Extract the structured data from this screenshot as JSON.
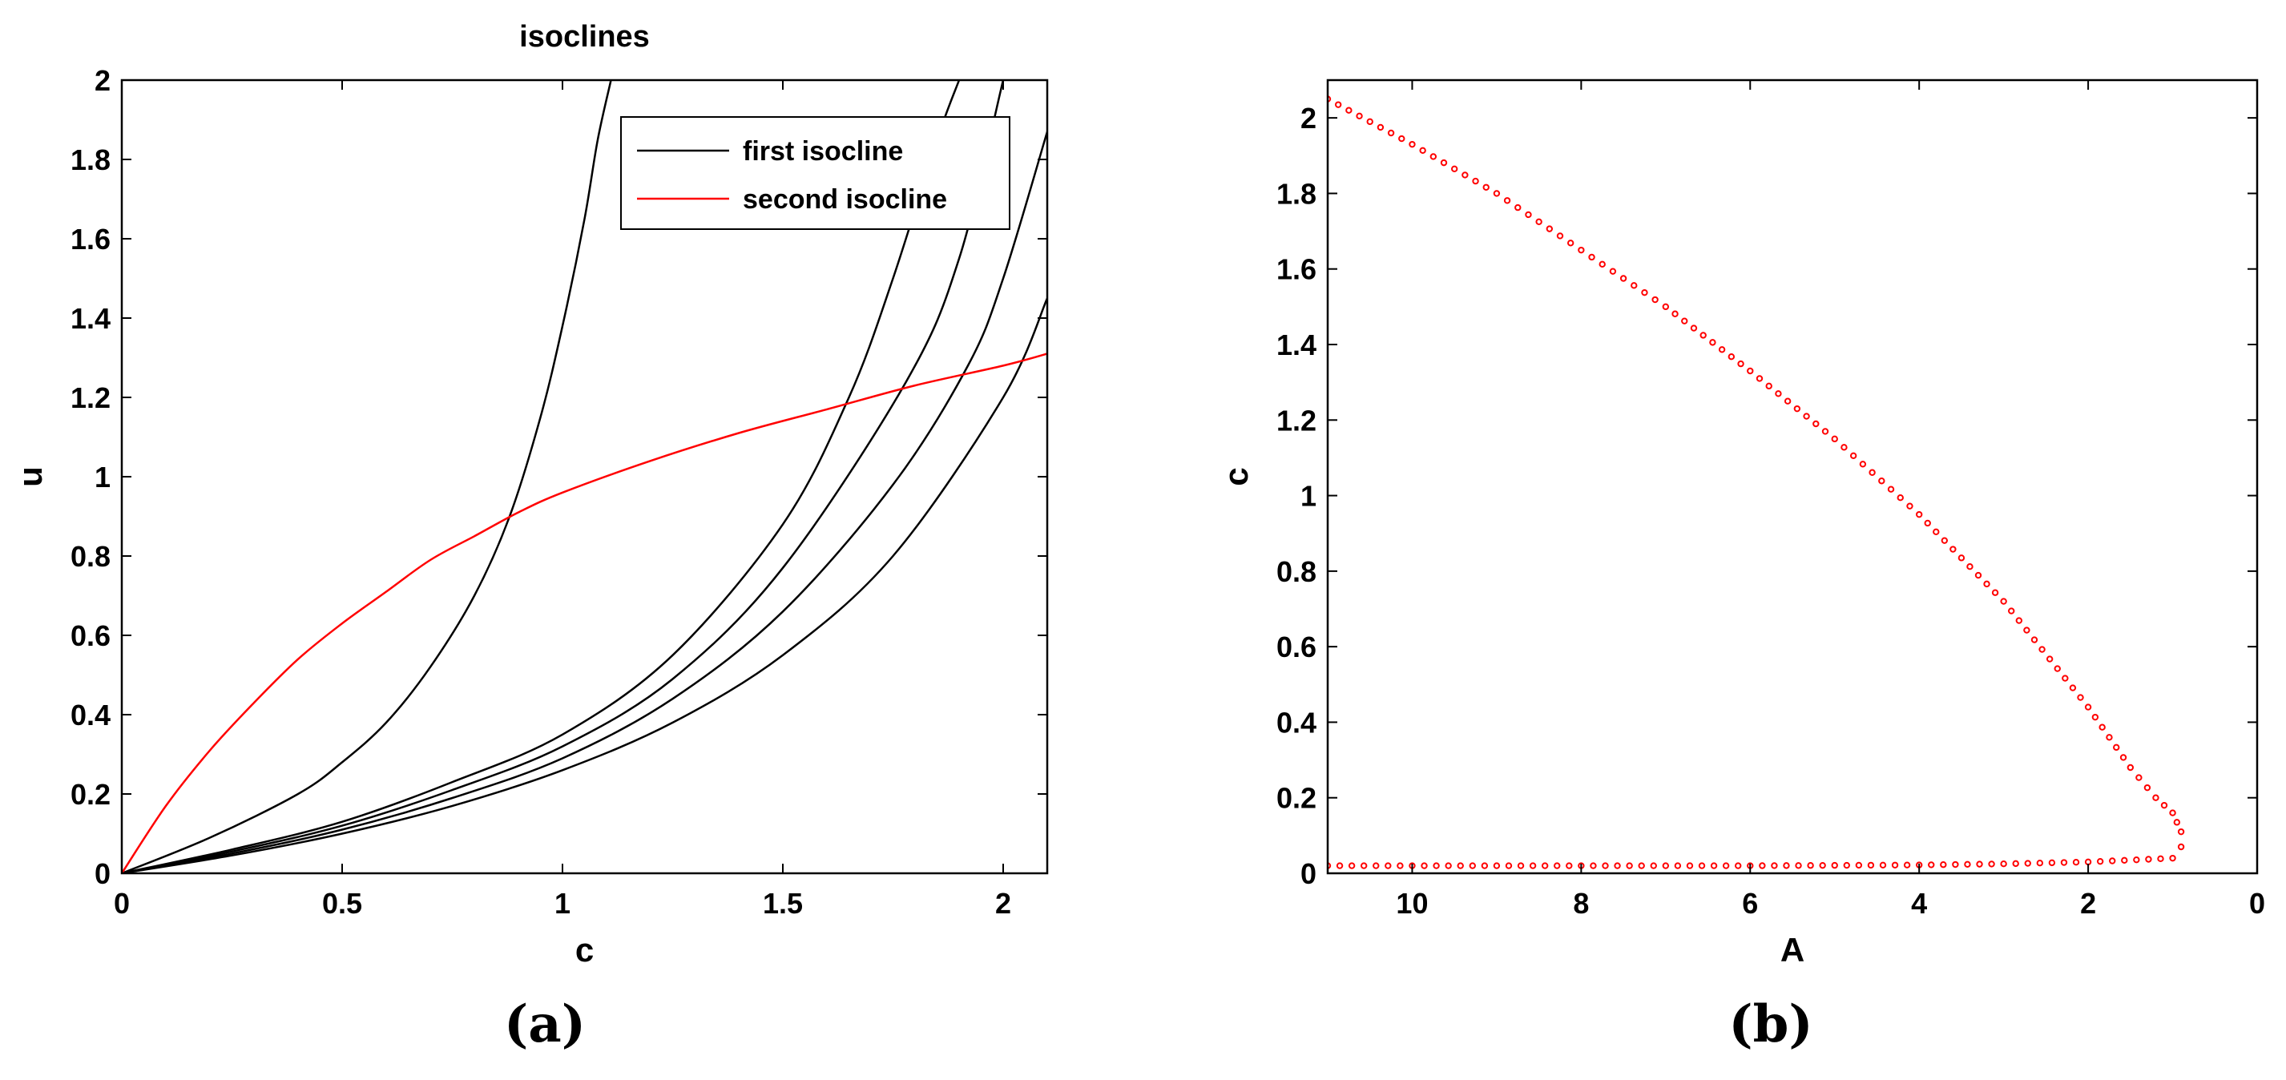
{
  "chart_data": [
    {
      "type": "line",
      "panel_label": "(a)",
      "title": "isoclines",
      "xlabel": "c",
      "ylabel": "u",
      "xlim": [
        0,
        2.1
      ],
      "ylim": [
        0,
        2
      ],
      "xticks": [
        0,
        0.5,
        1,
        1.5,
        2
      ],
      "xtick_labels": [
        "0",
        "0.5",
        "1",
        "1.5",
        "2"
      ],
      "yticks": [
        0,
        0.2,
        0.4,
        0.6,
        0.8,
        1,
        1.2,
        1.4,
        1.6,
        1.8,
        2
      ],
      "ytick_labels": [
        "0",
        "0.2",
        "0.4",
        "0.6",
        "0.8",
        "1",
        "1.2",
        "1.4",
        "1.6",
        "1.8",
        "2"
      ],
      "grid": false,
      "legend": {
        "placement": "top-right",
        "entries": [
          "first isocline",
          "second isocline"
        ]
      },
      "series": [
        {
          "name": "first isocline",
          "color": "#000000",
          "x": [
            0,
            0.2,
            0.4,
            0.5,
            0.6,
            0.7,
            0.8,
            0.88,
            0.95,
            1.0,
            1.05,
            1.08,
            1.11
          ],
          "y": [
            0,
            0.09,
            0.2,
            0.28,
            0.38,
            0.52,
            0.7,
            0.9,
            1.15,
            1.38,
            1.65,
            1.85,
            2.0
          ]
        },
        {
          "name": "",
          "color": "#000000",
          "x": [
            0,
            0.25,
            0.5,
            0.75,
            1.0,
            1.25,
            1.5,
            1.65,
            1.75,
            1.85,
            1.9
          ],
          "y": [
            0,
            0.06,
            0.13,
            0.23,
            0.35,
            0.55,
            0.88,
            1.2,
            1.5,
            1.85,
            2.0
          ]
        },
        {
          "name": "",
          "color": "#000000",
          "x": [
            0,
            0.25,
            0.5,
            0.75,
            1.0,
            1.25,
            1.5,
            1.78,
            1.9,
            2.0
          ],
          "y": [
            0,
            0.055,
            0.12,
            0.21,
            0.32,
            0.49,
            0.77,
            1.24,
            1.55,
            2.0
          ]
        },
        {
          "name": "",
          "color": "#000000",
          "x": [
            0,
            0.25,
            0.5,
            0.75,
            1.0,
            1.25,
            1.5,
            1.75,
            1.92,
            2.0,
            2.1
          ],
          "y": [
            0,
            0.05,
            0.11,
            0.19,
            0.29,
            0.44,
            0.66,
            0.98,
            1.28,
            1.5,
            1.87
          ]
        },
        {
          "name": "",
          "color": "#000000",
          "x": [
            0,
            0.25,
            0.5,
            0.75,
            1.0,
            1.25,
            1.5,
            1.75,
            2.0,
            2.1
          ],
          "y": [
            0,
            0.045,
            0.1,
            0.17,
            0.26,
            0.38,
            0.55,
            0.8,
            1.2,
            1.45
          ]
        },
        {
          "name": "second isocline",
          "color": "#ff0000",
          "x": [
            0,
            0.1,
            0.2,
            0.3,
            0.4,
            0.5,
            0.6,
            0.7,
            0.8,
            0.9,
            1.0,
            1.2,
            1.4,
            1.6,
            1.8,
            2.0,
            2.1
          ],
          "y": [
            0,
            0.17,
            0.31,
            0.43,
            0.54,
            0.63,
            0.71,
            0.79,
            0.85,
            0.91,
            0.96,
            1.04,
            1.11,
            1.17,
            1.23,
            1.28,
            1.31
          ]
        }
      ]
    },
    {
      "type": "scatter",
      "panel_label": "(b)",
      "title": "",
      "xlabel": "A",
      "ylabel": "c",
      "xlim": [
        11,
        0
      ],
      "x_reversed": true,
      "ylim": [
        0,
        2.1
      ],
      "xticks": [
        10,
        8,
        6,
        4,
        2,
        0
      ],
      "xtick_labels": [
        "10",
        "8",
        "6",
        "4",
        "2",
        "0"
      ],
      "yticks": [
        0,
        0.2,
        0.4,
        0.6,
        0.8,
        1,
        1.2,
        1.4,
        1.6,
        1.8,
        2
      ],
      "ytick_labels": [
        "0",
        "0.2",
        "0.4",
        "0.6",
        "0.8",
        "1",
        "1.2",
        "1.4",
        "1.6",
        "1.8",
        "2"
      ],
      "grid": false,
      "marker": "open-circle",
      "color": "#ff0000",
      "series": [
        {
          "name": "",
          "x": [
            11,
            10,
            9,
            8,
            7,
            6,
            5,
            4,
            3,
            2,
            1.5,
            1.2,
            1.0,
            0.9,
            0.9,
            1.0,
            2,
            3,
            4,
            5,
            6,
            7,
            8,
            9,
            10,
            11
          ],
          "y": [
            2.05,
            1.93,
            1.8,
            1.65,
            1.5,
            1.33,
            1.15,
            0.95,
            0.72,
            0.44,
            0.28,
            0.2,
            0.16,
            0.11,
            0.07,
            0.04,
            0.03,
            0.025,
            0.022,
            0.021,
            0.02,
            0.02,
            0.02,
            0.02,
            0.02,
            0.02
          ]
        }
      ]
    }
  ]
}
